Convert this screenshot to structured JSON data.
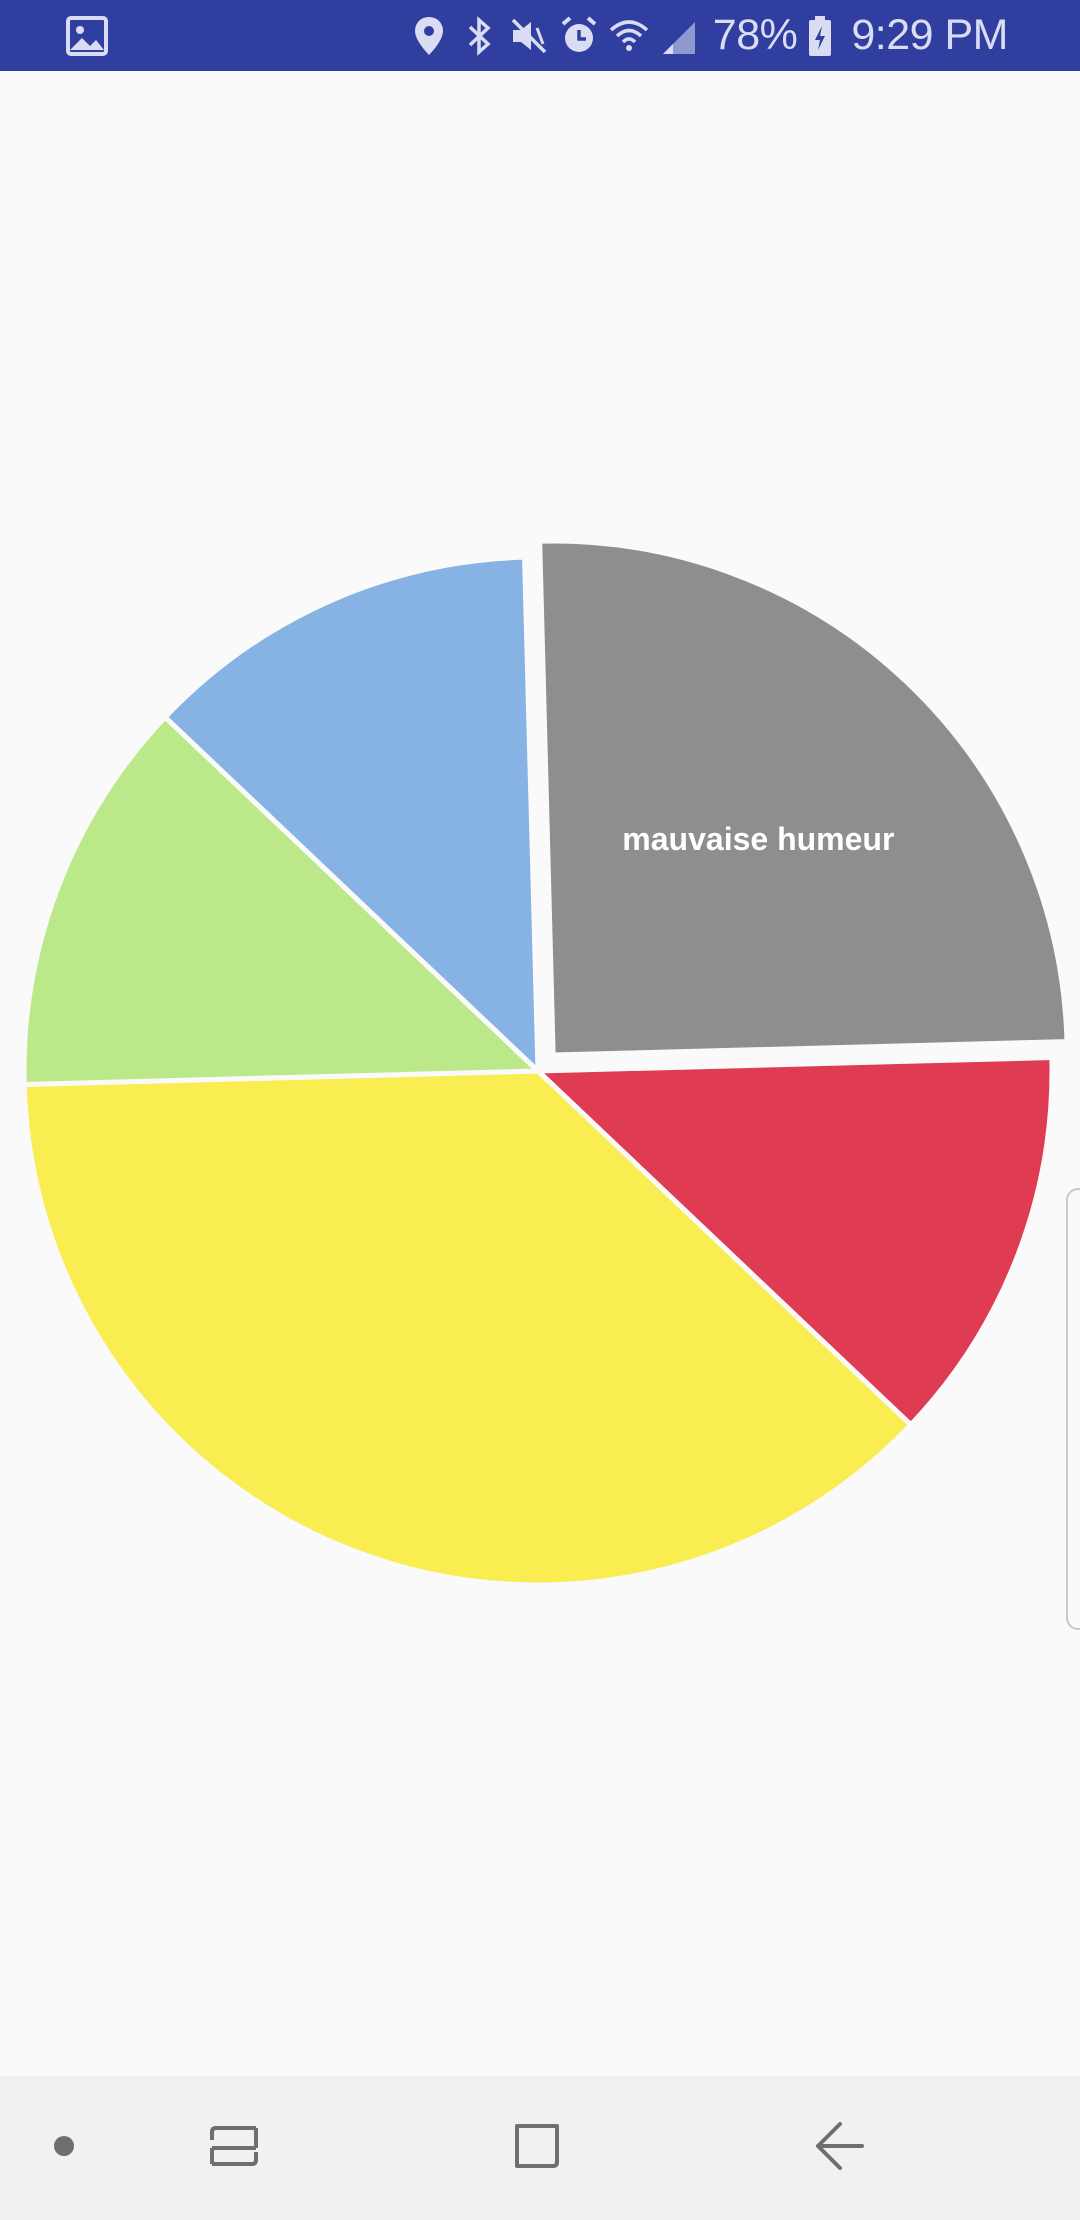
{
  "status_bar": {
    "battery_percent": "78%",
    "time": "9:29 PM",
    "icons": [
      "gallery-notification-icon",
      "location-icon",
      "bluetooth-icon",
      "mute-icon",
      "alarm-icon",
      "wifi-icon",
      "signal-icon",
      "battery-icon"
    ]
  },
  "chart_data": {
    "type": "pie",
    "start_angle_deg": -1.5,
    "slices": [
      {
        "label": "mauvaise humeur",
        "value": 25,
        "color": "#8e8e8e",
        "exploded": true
      },
      {
        "label": "",
        "value": 12.5,
        "color": "#df3b52",
        "exploded": false
      },
      {
        "label": "",
        "value": 37.5,
        "color": "#faed51",
        "exploded": false
      },
      {
        "label": "",
        "value": 12.5,
        "color": "#bbe98a",
        "exploded": false
      },
      {
        "label": "",
        "value": 12.5,
        "color": "#87b2e4",
        "exploded": false
      }
    ]
  },
  "nav_bar": {
    "icons": [
      "nav-dot-icon",
      "recents-icon",
      "home-icon",
      "back-icon"
    ]
  },
  "colors": {
    "status_bar": "#303f9f",
    "background": "#fafafa",
    "nav_bar": "#f1f1f1"
  }
}
